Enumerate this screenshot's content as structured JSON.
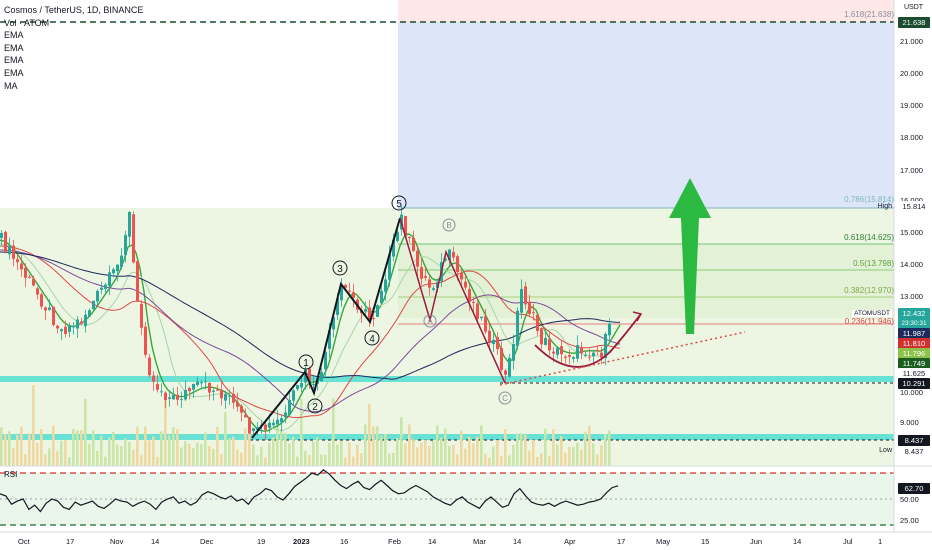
{
  "header": {
    "symbol": "Cosmos / TetherUS, 1D, BINANCE",
    "indicators": [
      "Vol · ATOM",
      "EMA",
      "EMA",
      "EMA",
      "EMA",
      "MA"
    ]
  },
  "currency": "USDT",
  "price_axis": {
    "ticks": [
      "21.000",
      "20.000",
      "19.000",
      "18.000",
      "17.000",
      "16.000",
      "15.000",
      "14.000",
      "13.000",
      "10.000",
      "9.000"
    ]
  },
  "fib_levels": {
    "l1618": "1.618(21.638)",
    "l786": "0.786(15.814)",
    "l618": "0.618(14.625)",
    "l500": "0.5(13.798)",
    "l382": "0.382(12.970)",
    "l236": "0.236(11.946)"
  },
  "price_tags": {
    "t1": "21.638",
    "high_label": "High",
    "t2": "15.814",
    "symbol_tag": "ATOMUSDT",
    "t3": "12.432",
    "countdown": "23:30:31",
    "t4": "11.987",
    "t5": "11.810",
    "t6": "11.796",
    "t7": "11.749",
    "t8": "11.625",
    "t9": "10.291",
    "t10": "8.437",
    "low_label": "Low",
    "t11": "8.437"
  },
  "rsi": {
    "label": "RSI",
    "value_tag": "62.70",
    "ticks": [
      "50.00",
      "25.00"
    ],
    "values": [
      55,
      53,
      45,
      48,
      50,
      40,
      44,
      38,
      46,
      50,
      48,
      42,
      40,
      47,
      44,
      46,
      48,
      43,
      41,
      45,
      50,
      48,
      47,
      43,
      46,
      48,
      45,
      40,
      47,
      50,
      52,
      46,
      48,
      44,
      47,
      54,
      57,
      55,
      52,
      50,
      53,
      48,
      50,
      45,
      52,
      55,
      60,
      58,
      52,
      49,
      55,
      62,
      66,
      70,
      75,
      73,
      78,
      74,
      68,
      63,
      60,
      64,
      67,
      61,
      59,
      64,
      68,
      63,
      58,
      55,
      56,
      60,
      63,
      60,
      57,
      52,
      49,
      46,
      44,
      49,
      52,
      47,
      44,
      41,
      48,
      52,
      47,
      42,
      44,
      55,
      60,
      53,
      47,
      45,
      44,
      46,
      43,
      46,
      48,
      46,
      44,
      45,
      47,
      48,
      50,
      56,
      61,
      62.7
    ]
  },
  "time_axis": [
    "Oct",
    "17",
    "Nov",
    "14",
    "Dec",
    "19",
    "2023",
    "16",
    "Feb",
    "14",
    "Mar",
    "14",
    "Apr",
    "17",
    "May",
    "15",
    "Jun",
    "14",
    "Jul",
    "1"
  ],
  "wave_labels": {
    "w1": "1",
    "w2": "2",
    "w3": "3",
    "w4": "4",
    "w5": "5",
    "wa": "A",
    "wb": "B",
    "wc": "C"
  },
  "colors": {
    "fib_top": "#fde7e7",
    "fib_blue": "#d9e4f9",
    "fib_green": "#e8f5e0",
    "support_band": "#67e2d5",
    "arrow_green": "#2cb942",
    "candle_up": "#26a69a",
    "candle_down": "#ef5350",
    "ema_green": "#35a93a",
    "ema_red": "#e04848",
    "ema_dark": "#1d2a5c",
    "ema_purple": "#7d4b9a",
    "curve": "#9c1a3e",
    "rsi_line": "#131722"
  }
}
